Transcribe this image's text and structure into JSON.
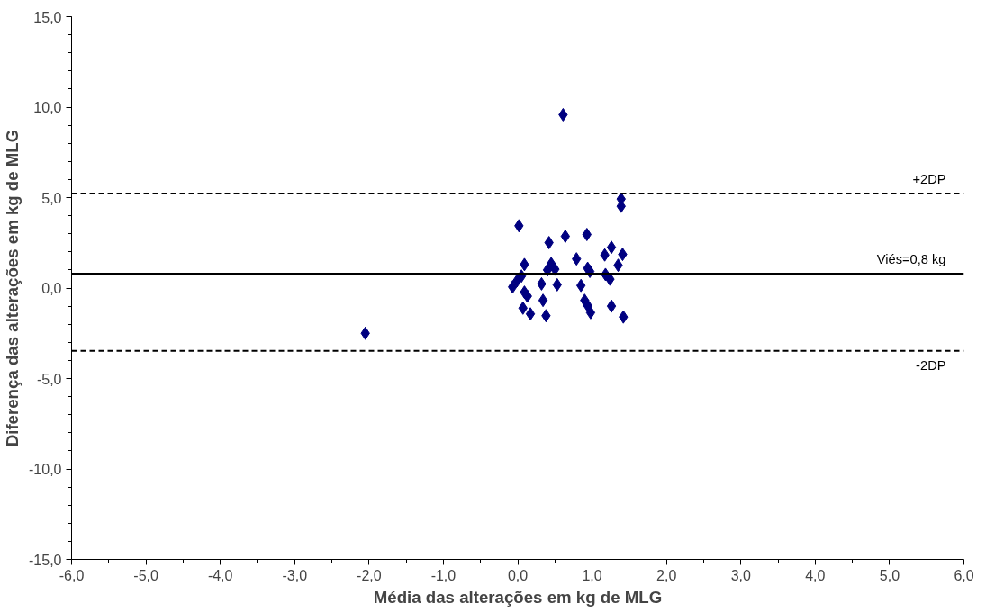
{
  "chart_data": {
    "type": "scatter",
    "xlabel": "Média das alterações em kg de MLG",
    "ylabel": "Diferença das alterações em kg de MLG",
    "x": [
      0.016,
      1.39,
      1.39,
      0.42,
      0.64,
      0.93,
      1.26,
      1.17,
      1.41,
      0.79,
      1.35,
      0.09,
      0.45,
      0.4,
      0.5,
      0.94,
      0.97,
      1.18,
      1.24,
      0.05,
      -0.01,
      -0.07,
      0.32,
      0.53,
      0.85,
      0.09,
      0.13,
      0.34,
      0.9,
      0.94,
      0.07,
      1.26,
      0.98,
      0.17,
      0.38,
      1.42,
      0.61,
      -2.05
    ],
    "series": [
      {
        "color": "#000080",
        "values": [
          3.44,
          4.52,
          4.92,
          2.51,
          2.86,
          2.96,
          2.25,
          1.83,
          1.86,
          1.61,
          1.26,
          1.3,
          1.35,
          1.0,
          1.04,
          1.09,
          0.92,
          0.75,
          0.49,
          0.66,
          0.4,
          0.06,
          0.23,
          0.18,
          0.14,
          -0.23,
          -0.45,
          -0.68,
          -0.68,
          -0.97,
          -1.11,
          -1.0,
          -1.36,
          -1.43,
          -1.53,
          -1.6,
          9.58,
          -2.5
        ]
      }
    ],
    "marker": "diamond",
    "xlim": [
      -6,
      6
    ],
    "xticks": [
      {
        "value": -6,
        "label": "-6,0"
      },
      {
        "value": -5,
        "label": "-5,0"
      },
      {
        "value": -4,
        "label": "-4,0"
      },
      {
        "value": -3,
        "label": "-3,0"
      },
      {
        "value": -2,
        "label": "-2,0"
      },
      {
        "value": -1,
        "label": "-1,0"
      },
      {
        "value": 0,
        "label": "0,0"
      },
      {
        "value": 1,
        "label": "1,0"
      },
      {
        "value": 2,
        "label": "2,0"
      },
      {
        "value": 3,
        "label": "3,0"
      },
      {
        "value": 4,
        "label": "4,0"
      },
      {
        "value": 5,
        "label": "5,0"
      },
      {
        "value": 6,
        "label": "6,0"
      }
    ],
    "ylim": [
      -15,
      15
    ],
    "yticks": [
      {
        "value": -15,
        "label": "-15,0"
      },
      {
        "value": -10,
        "label": "-10,0"
      },
      {
        "value": -5,
        "label": "-5,0"
      },
      {
        "value": 0,
        "label": "0,0"
      },
      {
        "value": 5,
        "label": "5,0"
      },
      {
        "value": 10,
        "label": "10,0"
      },
      {
        "value": 15,
        "label": "15,0"
      }
    ],
    "ref_lines": [
      {
        "axis": "y",
        "value": 5.22,
        "label": "+2DP",
        "color": "#000000",
        "line_style": "dashed"
      },
      {
        "axis": "y",
        "value": 0.8,
        "label": "Viés=0,8 kg",
        "color": "#000000",
        "line_style": "solid"
      },
      {
        "axis": "y",
        "value": -3.47,
        "label": "-2DP",
        "color": "#000000",
        "line_style": "dashed"
      }
    ]
  }
}
